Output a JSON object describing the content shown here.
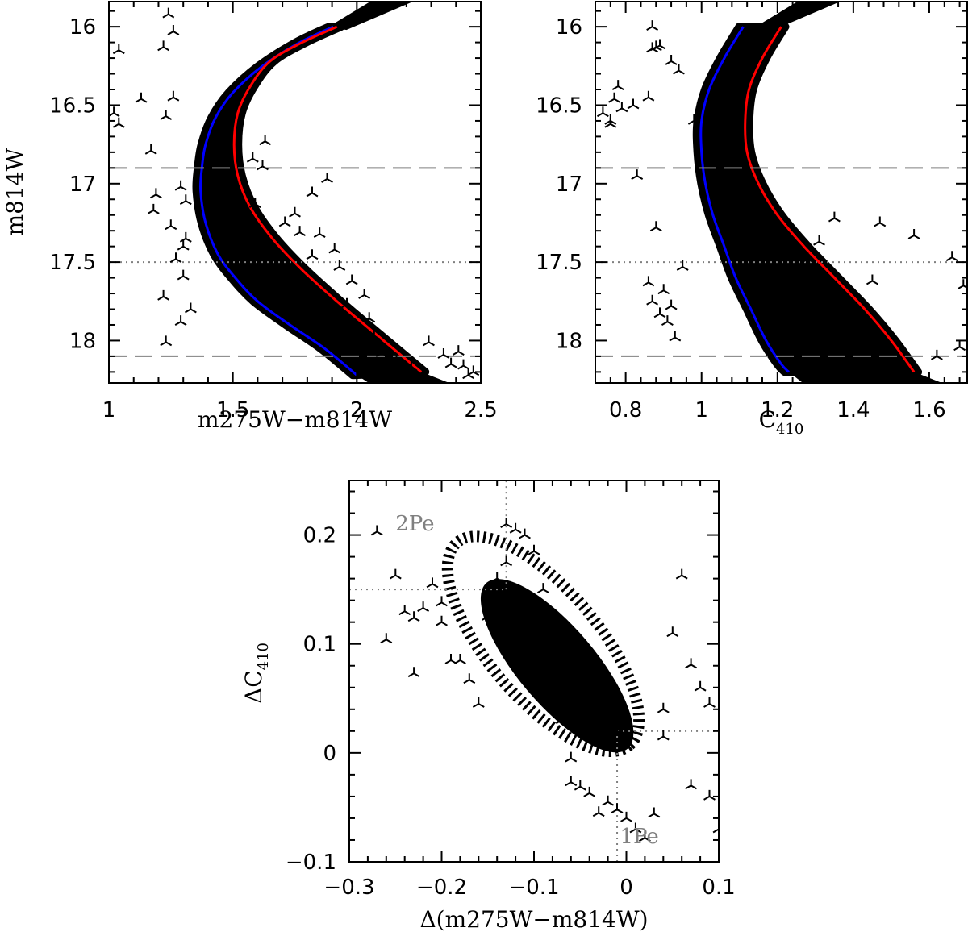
{
  "chart_data": [
    {
      "type": "scatter",
      "id": "cmd-color",
      "xlabel": "m275W−m814W",
      "ylabel": "m814W",
      "xlim": [
        1.0,
        2.5
      ],
      "ylim": [
        18.27,
        15.84
      ],
      "y_inverted": true,
      "xticks": [
        1,
        1.5,
        2,
        2.5
      ],
      "xtick_labels": [
        "1",
        "1.5",
        "2",
        "2.5"
      ],
      "yticks": [
        16,
        16.5,
        17,
        17.5,
        18
      ],
      "ytick_labels": [
        "16",
        "16.5",
        "17",
        "17.5",
        "18"
      ],
      "hlines": [
        {
          "y": 16.9,
          "style": "dashed",
          "color": "#808080"
        },
        {
          "y": 17.5,
          "style": "dotted",
          "color": "#808080"
        },
        {
          "y": 18.1,
          "style": "dashed",
          "color": "#808080"
        }
      ],
      "series": [
        {
          "role": "blue-fiducial",
          "color": "#0000ff",
          "x": [
            1.905,
            1.77,
            1.62,
            1.5,
            1.43,
            1.39,
            1.375,
            1.37,
            1.39,
            1.44,
            1.51,
            1.6,
            1.73,
            1.87,
            2.0
          ],
          "y": [
            16.0,
            16.1,
            16.25,
            16.42,
            16.58,
            16.75,
            16.9,
            17.05,
            17.25,
            17.45,
            17.6,
            17.75,
            17.9,
            18.05,
            18.22
          ]
        },
        {
          "role": "red-fiducial",
          "color": "#ff0000",
          "x": [
            1.92,
            1.78,
            1.65,
            1.57,
            1.52,
            1.505,
            1.52,
            1.57,
            1.66,
            1.78,
            1.92,
            2.07,
            2.26
          ],
          "y": [
            16.0,
            16.1,
            16.22,
            16.38,
            16.55,
            16.75,
            16.95,
            17.15,
            17.35,
            17.55,
            17.75,
            17.95,
            18.2
          ]
        }
      ],
      "points_symbol": "three-armed star (black)",
      "points": {
        "x": [
          1.24,
          1.26,
          1.22,
          1.02,
          1.13,
          1.17,
          1.23,
          1.26,
          1.29,
          1.18,
          1.25,
          1.31,
          1.27,
          1.22,
          1.3,
          1.33,
          1.23,
          1.19,
          1.31,
          1.29,
          1.58,
          1.63,
          1.62,
          1.59,
          1.71,
          1.75,
          1.82,
          1.85,
          1.93,
          1.98,
          2.03,
          1.96,
          2.05,
          2.07,
          2.38,
          2.45,
          2.41,
          2.29,
          2.35,
          2.43,
          2.47,
          1.88,
          1.82,
          1.77,
          1.91,
          2.1,
          2.16,
          2.22,
          1.04,
          1.04,
          1.3
        ],
        "y": [
          15.92,
          16.03,
          16.13,
          16.55,
          16.46,
          16.79,
          16.57,
          16.45,
          17.02,
          17.17,
          17.27,
          17.35,
          17.48,
          17.72,
          17.59,
          17.8,
          18.01,
          17.07,
          17.11,
          17.88,
          16.84,
          16.73,
          16.89,
          17.13,
          17.25,
          17.19,
          17.46,
          17.32,
          17.53,
          17.62,
          17.71,
          17.77,
          17.86,
          17.97,
          18.15,
          18.22,
          18.07,
          18.01,
          18.09,
          18.16,
          18.2,
          16.97,
          17.06,
          17.31,
          17.42,
          18.08,
          18.12,
          18.17,
          16.15,
          16.62,
          17.4
        ]
      },
      "main_sequence_band": {
        "description": "dense black band between the blue and red fiducial lines"
      }
    },
    {
      "type": "scatter",
      "id": "cmd-c410",
      "xlabel": "C",
      "xlabel_subscript": "410",
      "ylabel": "",
      "xlim": [
        0.72,
        1.7
      ],
      "ylim": [
        18.27,
        15.84
      ],
      "y_inverted": true,
      "xticks": [
        0.8,
        1.0,
        1.2,
        1.4,
        1.6
      ],
      "xtick_labels": [
        "0.8",
        "1",
        "1.2",
        "1.4",
        "1.6"
      ],
      "yticks": [
        16,
        16.5,
        17,
        17.5,
        18
      ],
      "ytick_labels": [
        "16",
        "16.5",
        "17",
        "17.5",
        "18"
      ],
      "hlines": [
        {
          "y": 16.9,
          "style": "dashed",
          "color": "#808080"
        },
        {
          "y": 17.5,
          "style": "dotted",
          "color": "#808080"
        },
        {
          "y": 18.1,
          "style": "dashed",
          "color": "#808080"
        }
      ],
      "series": [
        {
          "role": "blue-fiducial",
          "color": "#0000ff",
          "x": [
            1.11,
            1.06,
            1.02,
            1.0,
            1.0,
            1.01,
            1.03,
            1.06,
            1.09,
            1.13,
            1.17,
            1.21,
            1.23
          ],
          "y": [
            16.0,
            16.2,
            16.4,
            16.6,
            16.8,
            17.0,
            17.2,
            17.4,
            17.6,
            17.8,
            18.0,
            18.15,
            18.2
          ]
        },
        {
          "role": "red-fiducial",
          "color": "#ff0000",
          "x": [
            1.21,
            1.16,
            1.125,
            1.115,
            1.12,
            1.15,
            1.2,
            1.27,
            1.35,
            1.43,
            1.5,
            1.56
          ],
          "y": [
            16.0,
            16.2,
            16.4,
            16.6,
            16.8,
            17.0,
            17.2,
            17.4,
            17.6,
            17.8,
            18.0,
            18.2
          ]
        }
      ],
      "points_symbol": "three-armed star (black)",
      "points": {
        "x": [
          0.76,
          0.78,
          0.79,
          0.74,
          0.76,
          0.83,
          0.87,
          0.87,
          0.88,
          0.89,
          0.86,
          0.92,
          0.94,
          0.77,
          0.82,
          0.88,
          0.86,
          0.87,
          0.89,
          0.9,
          0.92,
          0.93,
          0.91,
          1.56,
          1.66,
          1.69,
          1.62,
          1.45,
          1.47,
          1.68,
          0.98,
          0.95,
          1.31,
          1.35,
          1.28,
          1.39
        ],
        "y": [
          16.6,
          16.38,
          16.52,
          16.55,
          16.62,
          16.95,
          16.0,
          16.14,
          16.13,
          16.12,
          16.45,
          16.22,
          16.28,
          16.46,
          16.5,
          17.28,
          17.63,
          17.75,
          17.83,
          17.68,
          17.78,
          17.98,
          17.88,
          17.33,
          17.47,
          17.65,
          18.1,
          17.62,
          17.25,
          18.04,
          16.6,
          17.53,
          17.37,
          17.22,
          17.48,
          17.92
        ]
      },
      "main_sequence_band": {
        "description": "dense black band between the blue and red fiducial lines"
      }
    },
    {
      "type": "scatter",
      "id": "chromosome-map",
      "xlabel": "Δ(m275W−m814W)",
      "ylabel": "ΔC",
      "ylabel_subscript": "410",
      "xlim": [
        -0.3,
        0.1
      ],
      "ylim": [
        -0.1,
        0.25
      ],
      "xticks": [
        -0.3,
        -0.2,
        -0.1,
        0.0,
        0.1
      ],
      "xtick_labels": [
        "−0.3",
        "−0.2",
        "−0.1",
        "0",
        "0.1"
      ],
      "yticks": [
        -0.1,
        0.0,
        0.1,
        0.2
      ],
      "ytick_labels": [
        "−0.1",
        "0",
        "0.1",
        "0.2"
      ],
      "boundary_lines": [
        {
          "type": "vertical",
          "x": -0.13,
          "y_from": 0.15,
          "y_to": 0.25,
          "style": "dotted",
          "color": "#808080"
        },
        {
          "type": "horizontal",
          "y": 0.15,
          "x_from": -0.3,
          "x_to": -0.13,
          "style": "dotted",
          "color": "#808080"
        },
        {
          "type": "vertical",
          "x": -0.01,
          "y_from": -0.1,
          "y_to": 0.02,
          "style": "dotted",
          "color": "#808080"
        },
        {
          "type": "horizontal",
          "y": 0.02,
          "x_from": -0.01,
          "x_to": 0.1,
          "style": "dotted",
          "color": "#808080"
        }
      ],
      "annotations": [
        {
          "text": "2Pe",
          "x": -0.25,
          "y": 0.204,
          "color": "#808080"
        },
        {
          "text": "1Pe",
          "x": -0.007,
          "y": -0.083,
          "color": "#808080"
        }
      ],
      "points_symbol": "three-armed star (black)",
      "points": {
        "x": [
          -0.27,
          -0.26,
          -0.25,
          -0.23,
          -0.23,
          -0.22,
          -0.21,
          -0.2,
          -0.2,
          -0.19,
          -0.17,
          -0.16,
          -0.15,
          -0.14,
          -0.13,
          -0.12,
          -0.11,
          -0.1,
          -0.09,
          -0.07,
          -0.06,
          -0.05,
          -0.04,
          -0.03,
          -0.02,
          -0.01,
          0.0,
          0.01,
          0.02,
          0.03,
          0.04,
          0.05,
          0.06,
          0.07,
          0.08,
          0.09,
          0.09,
          0.1,
          -0.18,
          -0.24,
          -0.13,
          -0.06,
          0.04,
          0.07,
          -0.03,
          -0.01
        ],
        "y": [
          0.203,
          0.104,
          0.163,
          0.124,
          0.073,
          0.133,
          0.155,
          0.138,
          0.12,
          0.085,
          0.067,
          0.045,
          0.125,
          0.16,
          0.21,
          0.205,
          0.2,
          0.185,
          0.15,
          0.03,
          -0.027,
          -0.031,
          -0.037,
          -0.055,
          -0.045,
          -0.052,
          -0.06,
          -0.07,
          -0.078,
          -0.056,
          0.04,
          0.11,
          0.163,
          0.081,
          0.06,
          0.045,
          -0.04,
          -0.07,
          0.085,
          0.13,
          0.175,
          -0.005,
          0.015,
          -0.03,
          0.06,
          0.02
        ]
      },
      "dense_cloud": {
        "description": "dense elongated cloud from about (-0.16, 0.16) to (0.0, 0.0)"
      }
    }
  ]
}
